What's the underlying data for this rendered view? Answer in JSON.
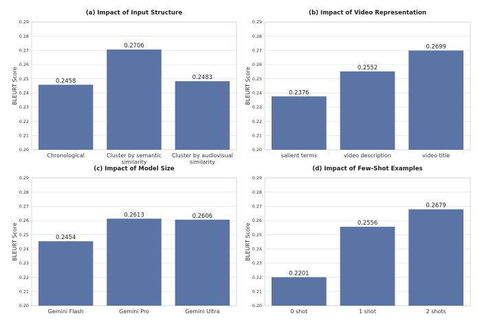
{
  "colors": {
    "bar": "#5a75a5",
    "grid": "#e6e6e6",
    "axis": "#d0d0d0"
  },
  "chart_data": [
    {
      "type": "bar",
      "title": "(a) Impact of Input Structure",
      "ylabel": "BLEURT Score",
      "xlabel": "",
      "ylim": [
        0.2,
        0.29
      ],
      "yticks": [
        "0.20",
        "0.21",
        "0.22",
        "0.23",
        "0.24",
        "0.25",
        "0.26",
        "0.27",
        "0.28",
        "0.29"
      ],
      "categories": [
        [
          "Chronological"
        ],
        [
          "Cluster by semantic",
          "similarity"
        ],
        [
          "Cluster by audiovisual",
          "similarity"
        ]
      ],
      "values": [
        0.2458,
        0.2706,
        0.2483
      ],
      "value_labels": [
        "0.2458",
        "0.2706",
        "0.2483"
      ],
      "grid": true
    },
    {
      "type": "bar",
      "title": "(b) Impact of Video Representation",
      "ylabel": "BLEURT Score",
      "xlabel": "",
      "ylim": [
        0.2,
        0.29
      ],
      "yticks": [
        "0.20",
        "0.21",
        "0.22",
        "0.23",
        "0.24",
        "0.25",
        "0.26",
        "0.27",
        "0.28",
        "0.29"
      ],
      "categories": [
        [
          "salient terms"
        ],
        [
          "video description"
        ],
        [
          "video title"
        ]
      ],
      "values": [
        0.2376,
        0.2552,
        0.2699
      ],
      "value_labels": [
        "0.2376",
        "0.2552",
        "0.2699"
      ],
      "grid": true
    },
    {
      "type": "bar",
      "title": "(c) Impact of Model Size",
      "ylabel": "BLEURT Score",
      "xlabel": "",
      "ylim": [
        0.2,
        0.29
      ],
      "yticks": [
        "0.20",
        "0.21",
        "0.22",
        "0.23",
        "0.24",
        "0.25",
        "0.26",
        "0.27",
        "0.28",
        "0.29"
      ],
      "categories": [
        [
          "Gemini Flash"
        ],
        [
          "Gemini Pro"
        ],
        [
          "Gemini Ultra"
        ]
      ],
      "values": [
        0.2454,
        0.2613,
        0.2606
      ],
      "value_labels": [
        "0.2454",
        "0.2613",
        "0.2606"
      ],
      "grid": true
    },
    {
      "type": "bar",
      "title": "(d) Impact of Few-Shot Examples",
      "ylabel": "BLEURT Score",
      "xlabel": "",
      "ylim": [
        0.2,
        0.29
      ],
      "yticks": [
        "0.20",
        "0.21",
        "0.22",
        "0.23",
        "0.24",
        "0.25",
        "0.26",
        "0.27",
        "0.28",
        "0.29"
      ],
      "categories": [
        [
          "0 shot"
        ],
        [
          "1 shot"
        ],
        [
          "2 shots"
        ]
      ],
      "values": [
        0.2201,
        0.2556,
        0.2679
      ],
      "value_labels": [
        "0.2201",
        "0.2556",
        "0.2679"
      ],
      "grid": true
    }
  ]
}
